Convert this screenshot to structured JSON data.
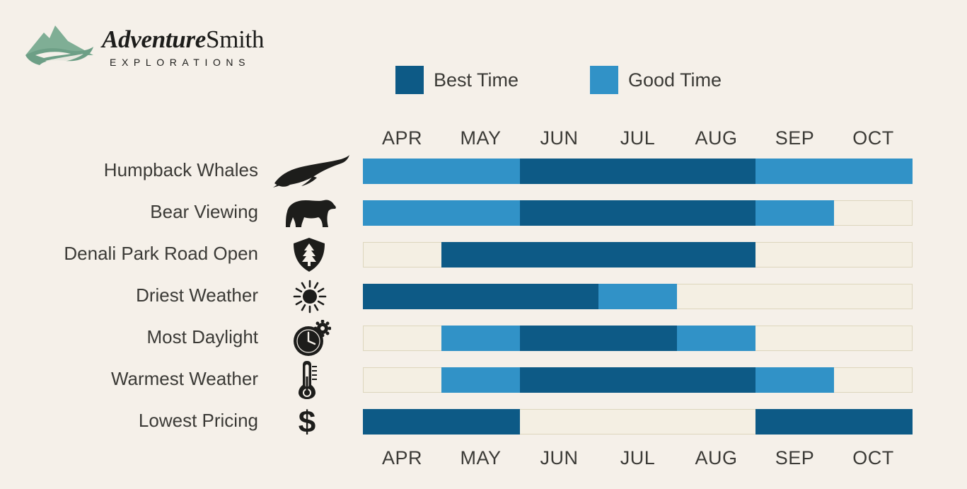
{
  "brand": {
    "name_part1": "Adventure",
    "name_part2": "Smith",
    "tagline": "EXPLORATIONS"
  },
  "legend": [
    {
      "label": "Best Time",
      "color": "#0d5a86"
    },
    {
      "label": "Good Time",
      "color": "#3192c7"
    }
  ],
  "months": [
    "APR",
    "MAY",
    "JUN",
    "JUL",
    "AUG",
    "SEP",
    "OCT"
  ],
  "chart_data": {
    "type": "timeline",
    "title": "",
    "x": [
      "APR",
      "MAY",
      "JUN",
      "JUL",
      "AUG",
      "SEP",
      "OCT"
    ],
    "levels": [
      "none",
      "good",
      "best"
    ],
    "colors": {
      "best": "#0d5a86",
      "good": "#3192c7",
      "none": "#f4efe3"
    },
    "rows": [
      {
        "label": "Humpback Whales",
        "icon": "whale-icon",
        "values": [
          "good",
          "good",
          "best",
          "best",
          "best",
          "good",
          "good"
        ]
      },
      {
        "label": "Bear Viewing",
        "icon": "bear-icon",
        "values": [
          "good",
          "good",
          "best",
          "best",
          "best",
          "good",
          "none"
        ]
      },
      {
        "label": "Denali Park Road Open",
        "icon": "park-tree-shield-icon",
        "values": [
          "none",
          "best",
          "best",
          "best",
          "best",
          "none",
          "none"
        ]
      },
      {
        "label": "Driest Weather",
        "icon": "sun-icon",
        "values": [
          "best",
          "best",
          "best",
          "good",
          "none",
          "none",
          "none"
        ]
      },
      {
        "label": "Most Daylight",
        "icon": "clock-gear-icon",
        "values": [
          "none",
          "good",
          "best",
          "best",
          "good",
          "none",
          "none"
        ]
      },
      {
        "label": "Warmest Weather",
        "icon": "thermometer-icon",
        "values": [
          "none",
          "good",
          "best",
          "best",
          "best",
          "good",
          "none"
        ]
      },
      {
        "label": "Lowest Pricing",
        "icon": "dollar-icon",
        "values": [
          "best",
          "best",
          "none",
          "none",
          "none",
          "best",
          "best"
        ]
      }
    ]
  }
}
